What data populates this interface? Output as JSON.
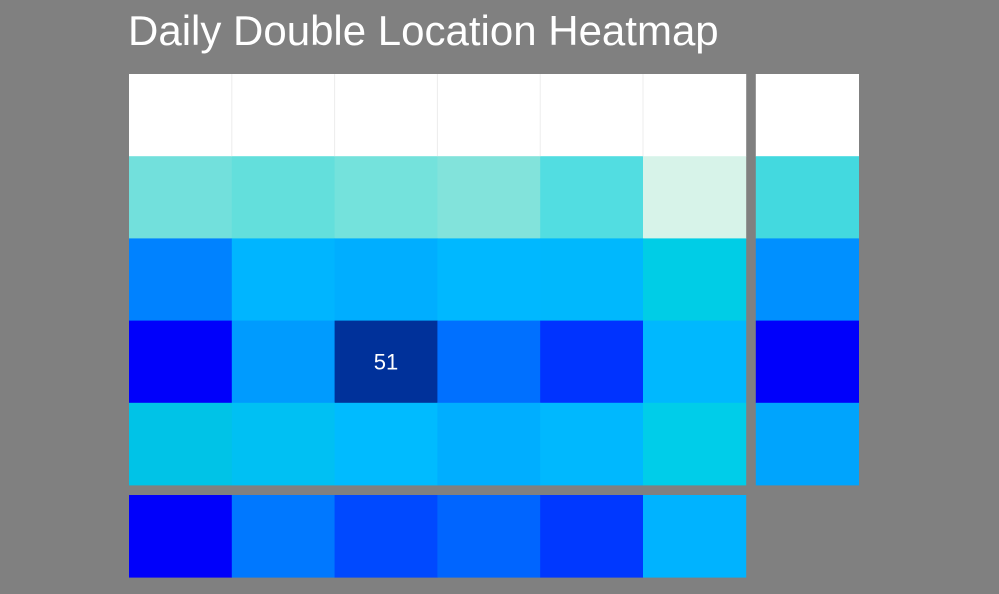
{
  "chart_data": {
    "type": "heatmap",
    "title": "Daily Double Location Heatmap",
    "rows": 5,
    "cols": 6,
    "annotations": [
      {
        "row": 3,
        "col": 2,
        "text": "51"
      }
    ],
    "cell_colors": [
      [
        "#ffffff",
        "#ffffff",
        "#ffffff",
        "#ffffff",
        "#ffffff",
        "#ffffff"
      ],
      [
        "#72e0dc",
        "#63dfdc",
        "#74e2dc",
        "#82e3db",
        "#52dde1",
        "#d7f3e9"
      ],
      [
        "#0082ff",
        "#00b5ff",
        "#00aeff",
        "#00b8ff",
        "#00b8fd",
        "#00cde6"
      ],
      [
        "#0000fb",
        "#009bfe",
        "#00319a",
        "#0070ff",
        "#0033ff",
        "#00b8fe"
      ],
      [
        "#00c3e7",
        "#00c0f3",
        "#00bbff",
        "#00aeff",
        "#00b8fe",
        "#00cde9"
      ]
    ],
    "row_total_colors": [
      "#ffffff",
      "#43d9df",
      "#0090ff",
      "#0000fb",
      "#00a4fd"
    ],
    "col_total_colors": [
      "#0000fb",
      "#0078ff",
      "#0049ff",
      "#0065ff",
      "#0038ff",
      "#00b3ff"
    ],
    "annotation_color": "#ffffff"
  }
}
